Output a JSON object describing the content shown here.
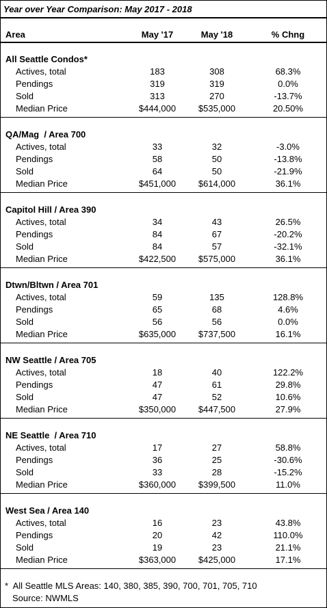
{
  "title": "Year over Year Comparison: May 2017 - 2018",
  "header": [
    "Area",
    "May '17",
    "May '18",
    "% Chng"
  ],
  "sections": [
    {
      "name": "All Seattle Condos*",
      "rows": [
        [
          "Actives, total",
          "183",
          "308",
          "68.3%"
        ],
        [
          "Pendings",
          "319",
          "319",
          "0.0%"
        ],
        [
          "Sold",
          "313",
          "270",
          "-13.7%"
        ],
        [
          "Median Price",
          "$444,000",
          "$535,000",
          "20.50%"
        ]
      ]
    },
    {
      "name": "QA/Mag  / Area 700",
      "rows": [
        [
          "Actives, total",
          "33",
          "32",
          "-3.0%"
        ],
        [
          "Pendings",
          "58",
          "50",
          "-13.8%"
        ],
        [
          "Sold",
          "64",
          "50",
          "-21.9%"
        ],
        [
          "Median Price",
          "$451,000",
          "$614,000",
          "36.1%"
        ]
      ]
    },
    {
      "name": "Capitol Hill / Area 390",
      "rows": [
        [
          "Actives, total",
          "34",
          "43",
          "26.5%"
        ],
        [
          "Pendings",
          "84",
          "67",
          "-20.2%"
        ],
        [
          "Sold",
          "84",
          "57",
          "-32.1%"
        ],
        [
          "Median Price",
          "$422,500",
          "$575,000",
          "36.1%"
        ]
      ]
    },
    {
      "name": "Dtwn/Bltwn / Area 701",
      "rows": [
        [
          "Actives, total",
          "59",
          "135",
          "128.8%"
        ],
        [
          "Pendings",
          "65",
          "68",
          "4.6%"
        ],
        [
          "Sold",
          "56",
          "56",
          "0.0%"
        ],
        [
          "Median Price",
          "$635,000",
          "$737,500",
          "16.1%"
        ]
      ]
    },
    {
      "name": "NW Seattle / Area 705",
      "rows": [
        [
          "Actives, total",
          "18",
          "40",
          "122.2%"
        ],
        [
          "Pendings",
          "47",
          "61",
          "29.8%"
        ],
        [
          "Sold",
          "47",
          "52",
          "10.6%"
        ],
        [
          "Median Price",
          "$350,000",
          "$447,500",
          "27.9%"
        ]
      ]
    },
    {
      "name": "NE Seattle  / Area 710",
      "rows": [
        [
          "Actives, total",
          "17",
          "27",
          "58.8%"
        ],
        [
          "Pendings",
          "36",
          "25",
          "-30.6%"
        ],
        [
          "Sold",
          "33",
          "28",
          "-15.2%"
        ],
        [
          "Median Price",
          "$360,000",
          "$399,500",
          "11.0%"
        ]
      ]
    },
    {
      "name": "West Sea / Area 140",
      "rows": [
        [
          "Actives, total",
          "16",
          "23",
          "43.8%"
        ],
        [
          "Pendings",
          "20",
          "42",
          "110.0%"
        ],
        [
          "Sold",
          "19",
          "23",
          "21.1%"
        ],
        [
          "Median Price",
          "$363,000",
          "$425,000",
          "17.1%"
        ]
      ]
    }
  ],
  "footnotes": [
    "*  All Seattle MLS Areas: 140, 380, 385, 390, 700, 701, 705, 710",
    "Source: NWMLS"
  ]
}
